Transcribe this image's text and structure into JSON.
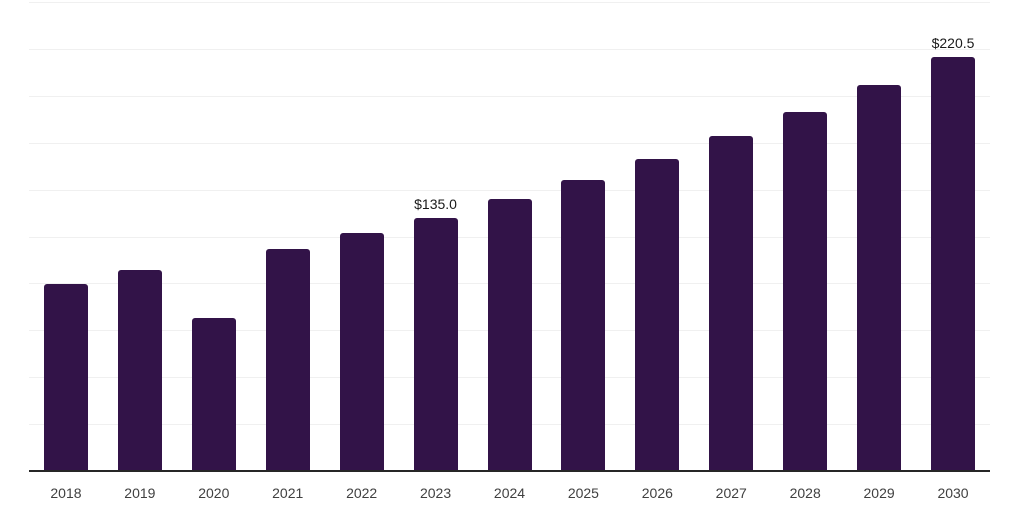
{
  "chart_data": {
    "type": "bar",
    "title": "",
    "xlabel": "",
    "ylabel": "",
    "categories": [
      "2018",
      "2019",
      "2020",
      "2021",
      "2022",
      "2023",
      "2024",
      "2025",
      "2026",
      "2027",
      "2028",
      "2029",
      "2030"
    ],
    "values": [
      99.8,
      107.4,
      81.6,
      118.3,
      126.7,
      135.0,
      144.8,
      155.1,
      166.1,
      178.7,
      191.3,
      205.7,
      220.5
    ],
    "annotations": [
      {
        "category": "2023",
        "label": "$135.0"
      },
      {
        "category": "2030",
        "label": "$220.5"
      }
    ],
    "ylim": [
      0,
      250
    ],
    "gridline_step": 25,
    "grid": "horizontal",
    "legend_position": "none",
    "y_axis_tick_labels_visible": false,
    "bar_color": "#321348",
    "axis_color": "#262626",
    "gridline_color": "#f0f0f0",
    "tick_label_color": "#404040",
    "annotation_color": "#1a1a1a"
  }
}
